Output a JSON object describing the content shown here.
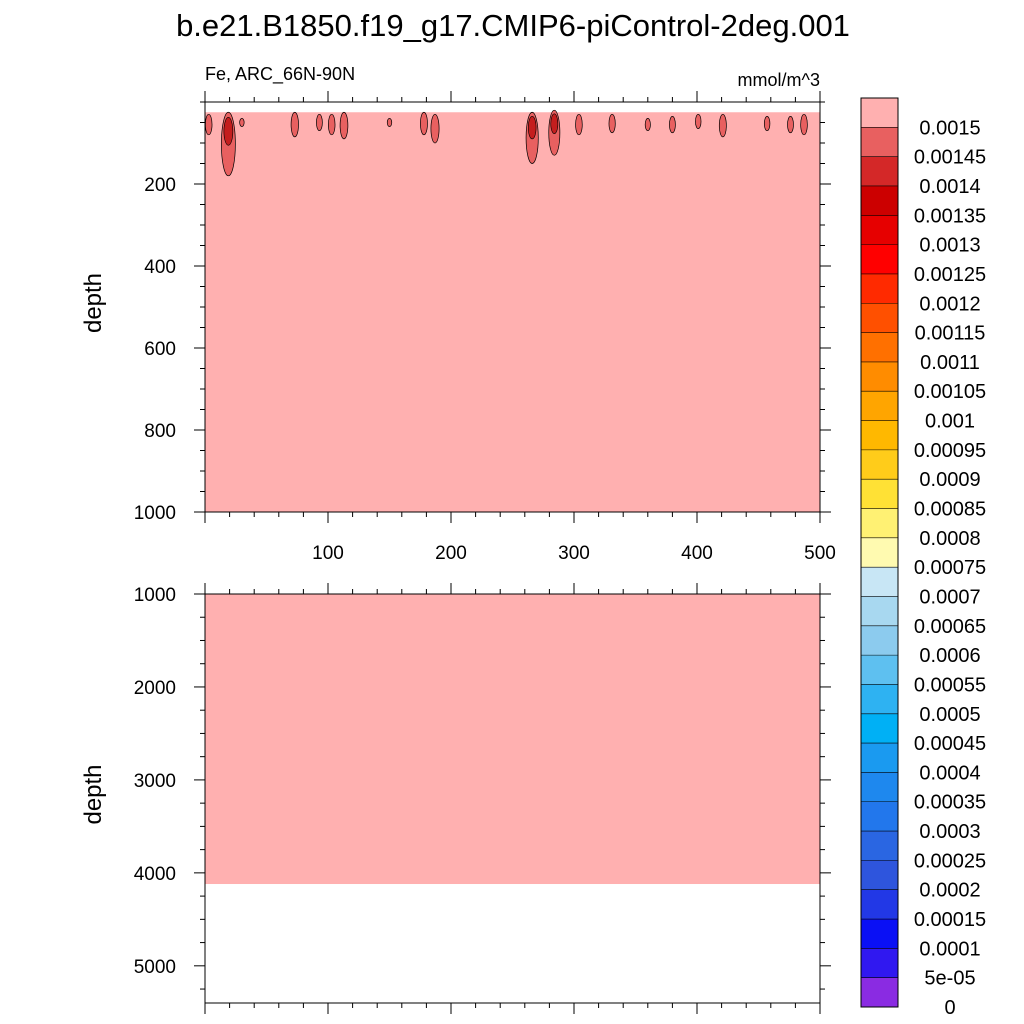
{
  "chart_data": {
    "type": "heatmap",
    "title": "b.e21.B1850.f19_g17.CMIP6-piControl-2deg.001",
    "variable_label": "Fe, ARC_66N-90N",
    "units": "mmol/m^3",
    "background_level_color": "#FFB0B0",
    "panels": [
      {
        "name": "upper",
        "ylabel": "depth",
        "xlim": [
          0,
          500
        ],
        "ylim": [
          0,
          1000
        ],
        "y_inverted": true,
        "xticks": [
          100,
          200,
          300,
          400,
          500
        ],
        "yticks": [
          200,
          400,
          600,
          800,
          1000
        ],
        "fill_depth_top": 25,
        "fill_depth_bottom": 1000,
        "features": [
          {
            "x": 3,
            "depth_top": 30,
            "depth_bottom": 80,
            "level": 0.00145
          },
          {
            "x": 19,
            "depth_top": 25,
            "depth_bottom": 180,
            "level": 0.00145
          },
          {
            "x": 30,
            "depth_top": 40,
            "depth_bottom": 60,
            "level": 0.0015
          },
          {
            "x": 73,
            "depth_top": 25,
            "depth_bottom": 85,
            "level": 0.00145
          },
          {
            "x": 93,
            "depth_top": 30,
            "depth_bottom": 70,
            "level": 0.0015
          },
          {
            "x": 103,
            "depth_top": 30,
            "depth_bottom": 80,
            "level": 0.0015
          },
          {
            "x": 113,
            "depth_top": 25,
            "depth_bottom": 90,
            "level": 0.00145
          },
          {
            "x": 150,
            "depth_top": 40,
            "depth_bottom": 60,
            "level": 0.0015
          },
          {
            "x": 178,
            "depth_top": 25,
            "depth_bottom": 80,
            "level": 0.00145
          },
          {
            "x": 187,
            "depth_top": 30,
            "depth_bottom": 100,
            "level": 0.00145
          },
          {
            "x": 266,
            "depth_top": 25,
            "depth_bottom": 150,
            "level": 0.00145
          },
          {
            "x": 284,
            "depth_top": 20,
            "depth_bottom": 130,
            "level": 0.00145
          },
          {
            "x": 304,
            "depth_top": 30,
            "depth_bottom": 80,
            "level": 0.0015
          },
          {
            "x": 331,
            "depth_top": 30,
            "depth_bottom": 75,
            "level": 0.0015
          },
          {
            "x": 360,
            "depth_top": 40,
            "depth_bottom": 70,
            "level": 0.0015
          },
          {
            "x": 380,
            "depth_top": 35,
            "depth_bottom": 75,
            "level": 0.0015
          },
          {
            "x": 401,
            "depth_top": 30,
            "depth_bottom": 65,
            "level": 0.0015
          },
          {
            "x": 421,
            "depth_top": 30,
            "depth_bottom": 85,
            "level": 0.00145
          },
          {
            "x": 457,
            "depth_top": 35,
            "depth_bottom": 70,
            "level": 0.0015
          },
          {
            "x": 476,
            "depth_top": 35,
            "depth_bottom": 75,
            "level": 0.0015
          },
          {
            "x": 487,
            "depth_top": 30,
            "depth_bottom": 80,
            "level": 0.00145
          }
        ]
      },
      {
        "name": "lower",
        "ylabel": "depth",
        "xlim": [
          0,
          500
        ],
        "ylim": [
          1000,
          5400
        ],
        "y_inverted": true,
        "yticks": [
          1000,
          2000,
          3000,
          4000,
          5000
        ],
        "fill_depth_top": 1000,
        "fill_depth_bottom": 4120
      }
    ],
    "colorbar": {
      "labels": [
        "0.0015",
        "0.00145",
        "0.0014",
        "0.00135",
        "0.0013",
        "0.00125",
        "0.0012",
        "0.00115",
        "0.0011",
        "0.00105",
        "0.001",
        "0.00095",
        "0.0009",
        "0.00085",
        "0.0008",
        "0.00075",
        "0.0007",
        "0.00065",
        "0.0006",
        "0.00055",
        "0.0005",
        "0.00045",
        "0.0004",
        "0.00035",
        "0.0003",
        "0.00025",
        "0.0002",
        "0.00015",
        "0.0001",
        "5e-05",
        "0"
      ],
      "colors": [
        "#FFB0B0",
        "#E86060",
        "#D42828",
        "#CC0000",
        "#E60000",
        "#FF0000",
        "#FF2A00",
        "#FF5000",
        "#FF7000",
        "#FF8C00",
        "#FFA500",
        "#FFB800",
        "#FFCC1A",
        "#FFE135",
        "#FFF173",
        "#FFFAB0",
        "#C8E6F5",
        "#A8D8F0",
        "#8CCBEE",
        "#5EC0F0",
        "#2EB2F2",
        "#00B0F5",
        "#1A9AF0",
        "#1E88EE",
        "#2277EC",
        "#2A66E2",
        "#2E55DD",
        "#2238E6",
        "#0A10F5",
        "#3018F0",
        "#8A2BE2"
      ]
    }
  }
}
